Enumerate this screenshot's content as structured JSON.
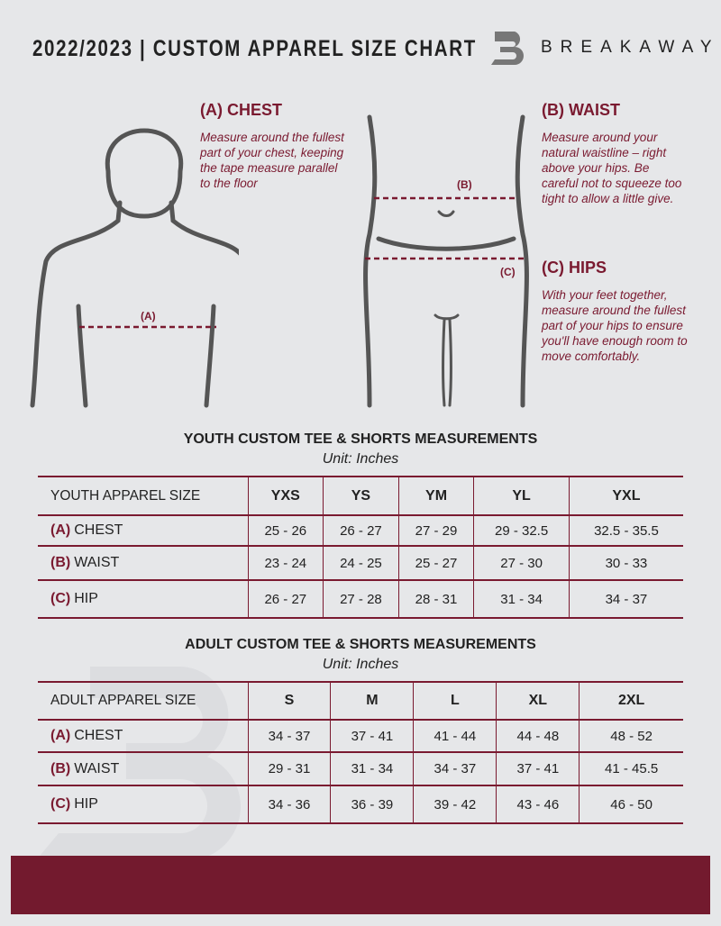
{
  "header": {
    "title": "2022/2023  |  CUSTOM APPAREL SIZE CHART",
    "brand": "BREAKAWAY"
  },
  "colors": {
    "accent": "#7a1a30",
    "background": "#e6e7e9"
  },
  "chest": {
    "heading": "(A) CHEST",
    "text": "Measure around the fullest part of your chest, keeping the tape measure parallel to the floor",
    "marker": "(A)"
  },
  "waist": {
    "heading": "(B) WAIST",
    "text": "Measure around your natural waistline – right above your hips. Be careful not to squeeze too tight to allow a little give.",
    "marker": "(B)"
  },
  "hips": {
    "heading": "(C) HIPS",
    "text": "With your feet together, measure around the fullest part of your hips to ensure you'll have enough room to move comfortably.",
    "marker": "(C)"
  },
  "youth": {
    "title": "YOUTH CUSTOM TEE & SHORTS MEASUREMENTS",
    "unit": "Unit: Inches",
    "header": [
      "YOUTH APPAREL SIZE",
      "YXS",
      "YS",
      "YM",
      "YL",
      "YXL"
    ],
    "rows": [
      {
        "tag": "(A)",
        "label": "CHEST",
        "values": [
          "25 - 26",
          "26 - 27",
          "27 - 29",
          "29 - 32.5",
          "32.5 - 35.5"
        ]
      },
      {
        "tag": "(B)",
        "label": "WAIST",
        "values": [
          "23 - 24",
          "24 - 25",
          "25 - 27",
          "27 - 30",
          "30 - 33"
        ]
      },
      {
        "tag": "(C)",
        "label": "HIP",
        "values": [
          "26 - 27",
          "27 - 28",
          "28 - 31",
          "31 - 34",
          "34 - 37"
        ]
      }
    ]
  },
  "adult": {
    "title": "ADULT CUSTOM TEE & SHORTS MEASUREMENTS",
    "unit": "Unit: Inches",
    "header": [
      "ADULT APPAREL SIZE",
      "S",
      "M",
      "L",
      "XL",
      "2XL"
    ],
    "rows": [
      {
        "tag": "(A)",
        "label": "CHEST",
        "values": [
          "34 - 37",
          "37 - 41",
          "41 - 44",
          "44 - 48",
          "48 - 52"
        ]
      },
      {
        "tag": "(B)",
        "label": "WAIST",
        "values": [
          "29 - 31",
          "31 - 34",
          "34 - 37",
          "37 - 41",
          "41 - 45.5"
        ]
      },
      {
        "tag": "(C)",
        "label": "HIP",
        "values": [
          "34 - 36",
          "36 - 39",
          "39 - 42",
          "43 - 46",
          "46 - 50"
        ]
      }
    ]
  }
}
